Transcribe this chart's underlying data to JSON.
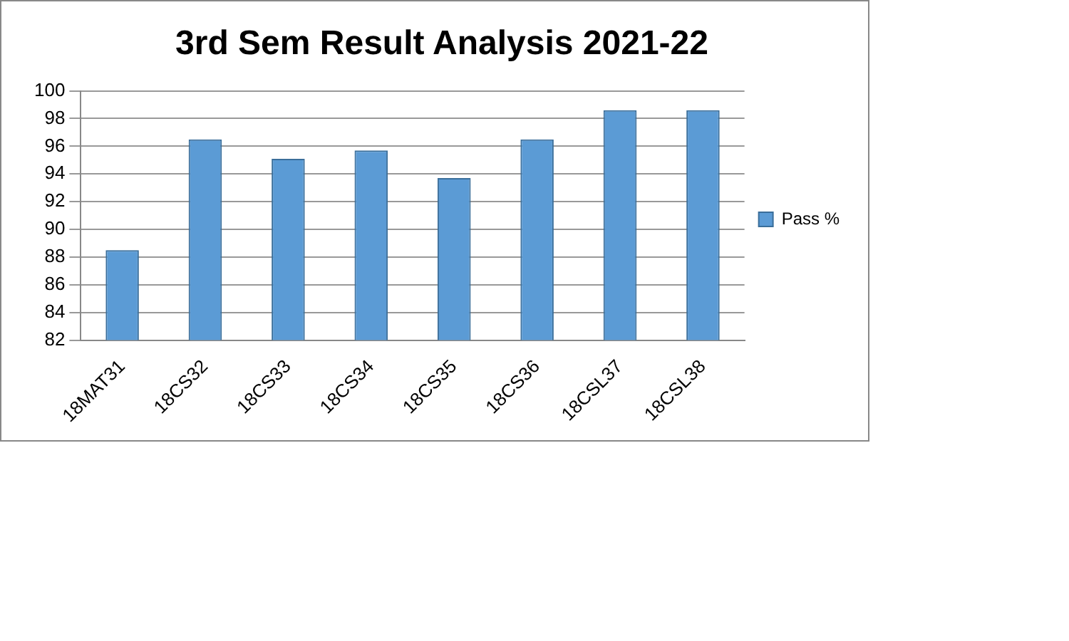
{
  "chart_data": {
    "type": "bar",
    "title": "3rd Sem Result Analysis 2021-22",
    "categories": [
      "18MAT31",
      "18CS32",
      "18CS33",
      "18CS34",
      "18CS35",
      "18CS36",
      "18CSL37",
      "18CSL38"
    ],
    "series": [
      {
        "name": "Pass %",
        "color": "#5b9bd5",
        "values": [
          88.5,
          96.5,
          95.1,
          95.7,
          93.7,
          96.5,
          98.6,
          98.6
        ]
      }
    ],
    "ylim": [
      82,
      100
    ],
    "yticks": [
      82,
      84,
      86,
      88,
      90,
      92,
      94,
      96,
      98,
      100
    ],
    "grid": "y",
    "legend": "right"
  }
}
